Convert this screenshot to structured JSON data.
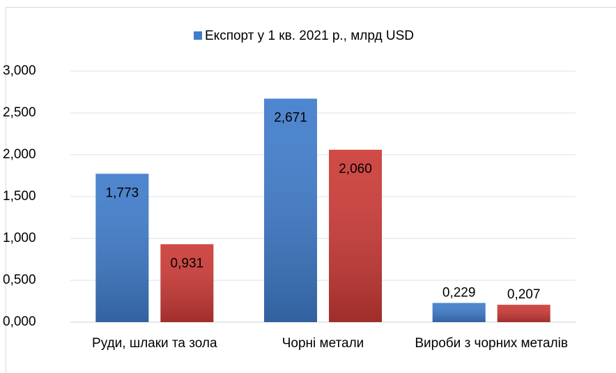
{
  "chart_data": {
    "type": "bar",
    "categories": [
      "Руди, шлаки та зола",
      "Чорні метали",
      "Вироби з чорних металів"
    ],
    "series": [
      {
        "name": "Експорт у 1 кв. 2021 р., млрд USD",
        "color": "#3f7ccb",
        "values": [
          1.773,
          2.671,
          0.229
        ],
        "value_labels": [
          "1,773",
          "2,671",
          "0,229"
        ]
      },
      {
        "color": "#cc3a36",
        "values": [
          0.931,
          2.06,
          0.207
        ],
        "value_labels": [
          "0,931",
          "2,060",
          "0,207"
        ]
      }
    ],
    "ylim": [
      0,
      3
    ],
    "yticks": [
      {
        "value": 0,
        "label": "0,000"
      },
      {
        "value": 0.5,
        "label": "0,500"
      },
      {
        "value": 1,
        "label": "1,000"
      },
      {
        "value": 1.5,
        "label": "1,500"
      },
      {
        "value": 2,
        "label": "2,000"
      },
      {
        "value": 2.5,
        "label": "2,500"
      },
      {
        "value": 3,
        "label": "3,000"
      }
    ],
    "grid": true
  }
}
